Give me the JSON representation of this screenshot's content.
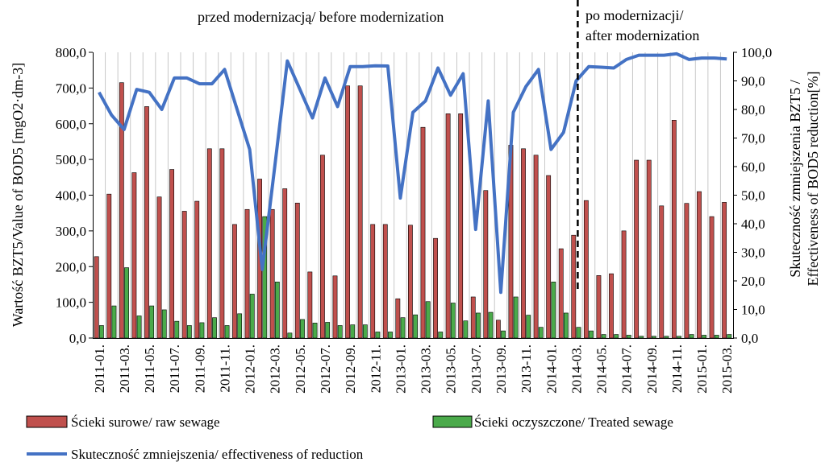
{
  "chart_data": {
    "type": "bar+line",
    "categories": [
      "2011-01.",
      "2011-02.",
      "2011-03.",
      "2011-04.",
      "2011-05.",
      "2011-06.",
      "2011-07.",
      "2011-08.",
      "2011-09.",
      "2011-10.",
      "2011-11.",
      "2011-12.",
      "2012-01.",
      "2012-02.",
      "2012-03.",
      "2012-04.",
      "2012-05.",
      "2012-06.",
      "2012-07.",
      "2012-08.",
      "2012-09.",
      "2012-10.",
      "2012-11.",
      "2012-12.",
      "2013-01.",
      "2013-02.",
      "2013-03.",
      "2013-04.",
      "2013-05.",
      "2013-06.",
      "2013-07.",
      "2013-08.",
      "2013-09.",
      "2013-10.",
      "2013-11.",
      "2013-12.",
      "2014-01.",
      "2014-02.",
      "2014-03.",
      "2014-04.",
      "2014-05.",
      "2014-06.",
      "2014-07.",
      "2014-08.",
      "2014-09.",
      "2014-10.",
      "2014-11.",
      "2014-12.",
      "2015-01.",
      "2015-02.",
      "2015-03."
    ],
    "tick_labels": [
      "2011-01.",
      "2011-03.",
      "2011-05.",
      "2011-07.",
      "2011-09.",
      "2011-11.",
      "2012-01.",
      "2012-03.",
      "2012-05.",
      "2012-07.",
      "2012-09.",
      "2012-11.",
      "2013-01.",
      "2013-03.",
      "2013-05.",
      "2013-07.",
      "2013-09.",
      "2013-11.",
      "2014-01.",
      "2014-03.",
      "2014-05.",
      "2014-07.",
      "2014-09.",
      "2014-11.",
      "2015-01.",
      "2015-03."
    ],
    "series": [
      {
        "name": "Ścieki surowe/ raw sewage",
        "kind": "bar",
        "axis": "left",
        "color": "#c0504d",
        "values": [
          228,
          403,
          715,
          463,
          648,
          395,
          472,
          355,
          383,
          530,
          530,
          318,
          360,
          445,
          360,
          418,
          378,
          185,
          512,
          174,
          706,
          706,
          318,
          318,
          110,
          316,
          590,
          279,
          628,
          628,
          115,
          413,
          50,
          540,
          530,
          512,
          455,
          250,
          288,
          385,
          175,
          180,
          300,
          498,
          498,
          370,
          610,
          377,
          410,
          340,
          380
        ]
      },
      {
        "name": "Ścieki oczyszczone/ Treated sewage",
        "kind": "bar",
        "axis": "left",
        "color": "#4aaa4a",
        "values": [
          35,
          90,
          197,
          62,
          90,
          79,
          47,
          35,
          43,
          57,
          35,
          68,
          123,
          340,
          157,
          14,
          52,
          42,
          44,
          35,
          37,
          37,
          17,
          17,
          57,
          65,
          102,
          17,
          98,
          48,
          70,
          72,
          20,
          115,
          64,
          30,
          157,
          70,
          30,
          20,
          10,
          10,
          8,
          5,
          5,
          5,
          5,
          10,
          8,
          8,
          10
        ]
      },
      {
        "name": "Skuteczność zmniejszenia/ effectiveness of reduction",
        "kind": "line",
        "axis": "right",
        "color": "#4472c4",
        "values": [
          86,
          78,
          73,
          87,
          86,
          80,
          91,
          91,
          89,
          89,
          94,
          80,
          66,
          24,
          60,
          97,
          87,
          77,
          91,
          81,
          95,
          95,
          95.3,
          95.2,
          49,
          79,
          83,
          94.5,
          85,
          92.5,
          38,
          83,
          16,
          79,
          88,
          94,
          66,
          72,
          90,
          95,
          94.8,
          94.5,
          97.5,
          99,
          99,
          99,
          99.5,
          97.5,
          98,
          98,
          97.7
        ]
      }
    ],
    "ylim_left": [
      0,
      800
    ],
    "yticks_left": [
      "0,0",
      "100,0",
      "200,0",
      "300,0",
      "400,0",
      "500,0",
      "600,0",
      "700,0",
      "800,0"
    ],
    "ylim_right": [
      0,
      100
    ],
    "yticks_right": [
      "0,0",
      "10,0",
      "20,0",
      "30,0",
      "40,0",
      "50,0",
      "60,0",
      "70,0",
      "80,0",
      "90,0",
      "100,0"
    ],
    "grid": "vertical",
    "ylabel": "Wartość BZT5/Value of BOD5 [mgO2·dm-3]",
    "ylabel_right_line1": "Skuteczność zmniejszenia BZT5 /",
    "ylabel_right_line2": "Effectiveness of BOD5 reduction[%]",
    "annotation_before": "przed modernizacją/ before modernization",
    "annotation_after_line1": "po modernizacji/",
    "annotation_after_line2": "after modernization",
    "divider_category": "2014-03.",
    "legend_position": "bottom"
  }
}
